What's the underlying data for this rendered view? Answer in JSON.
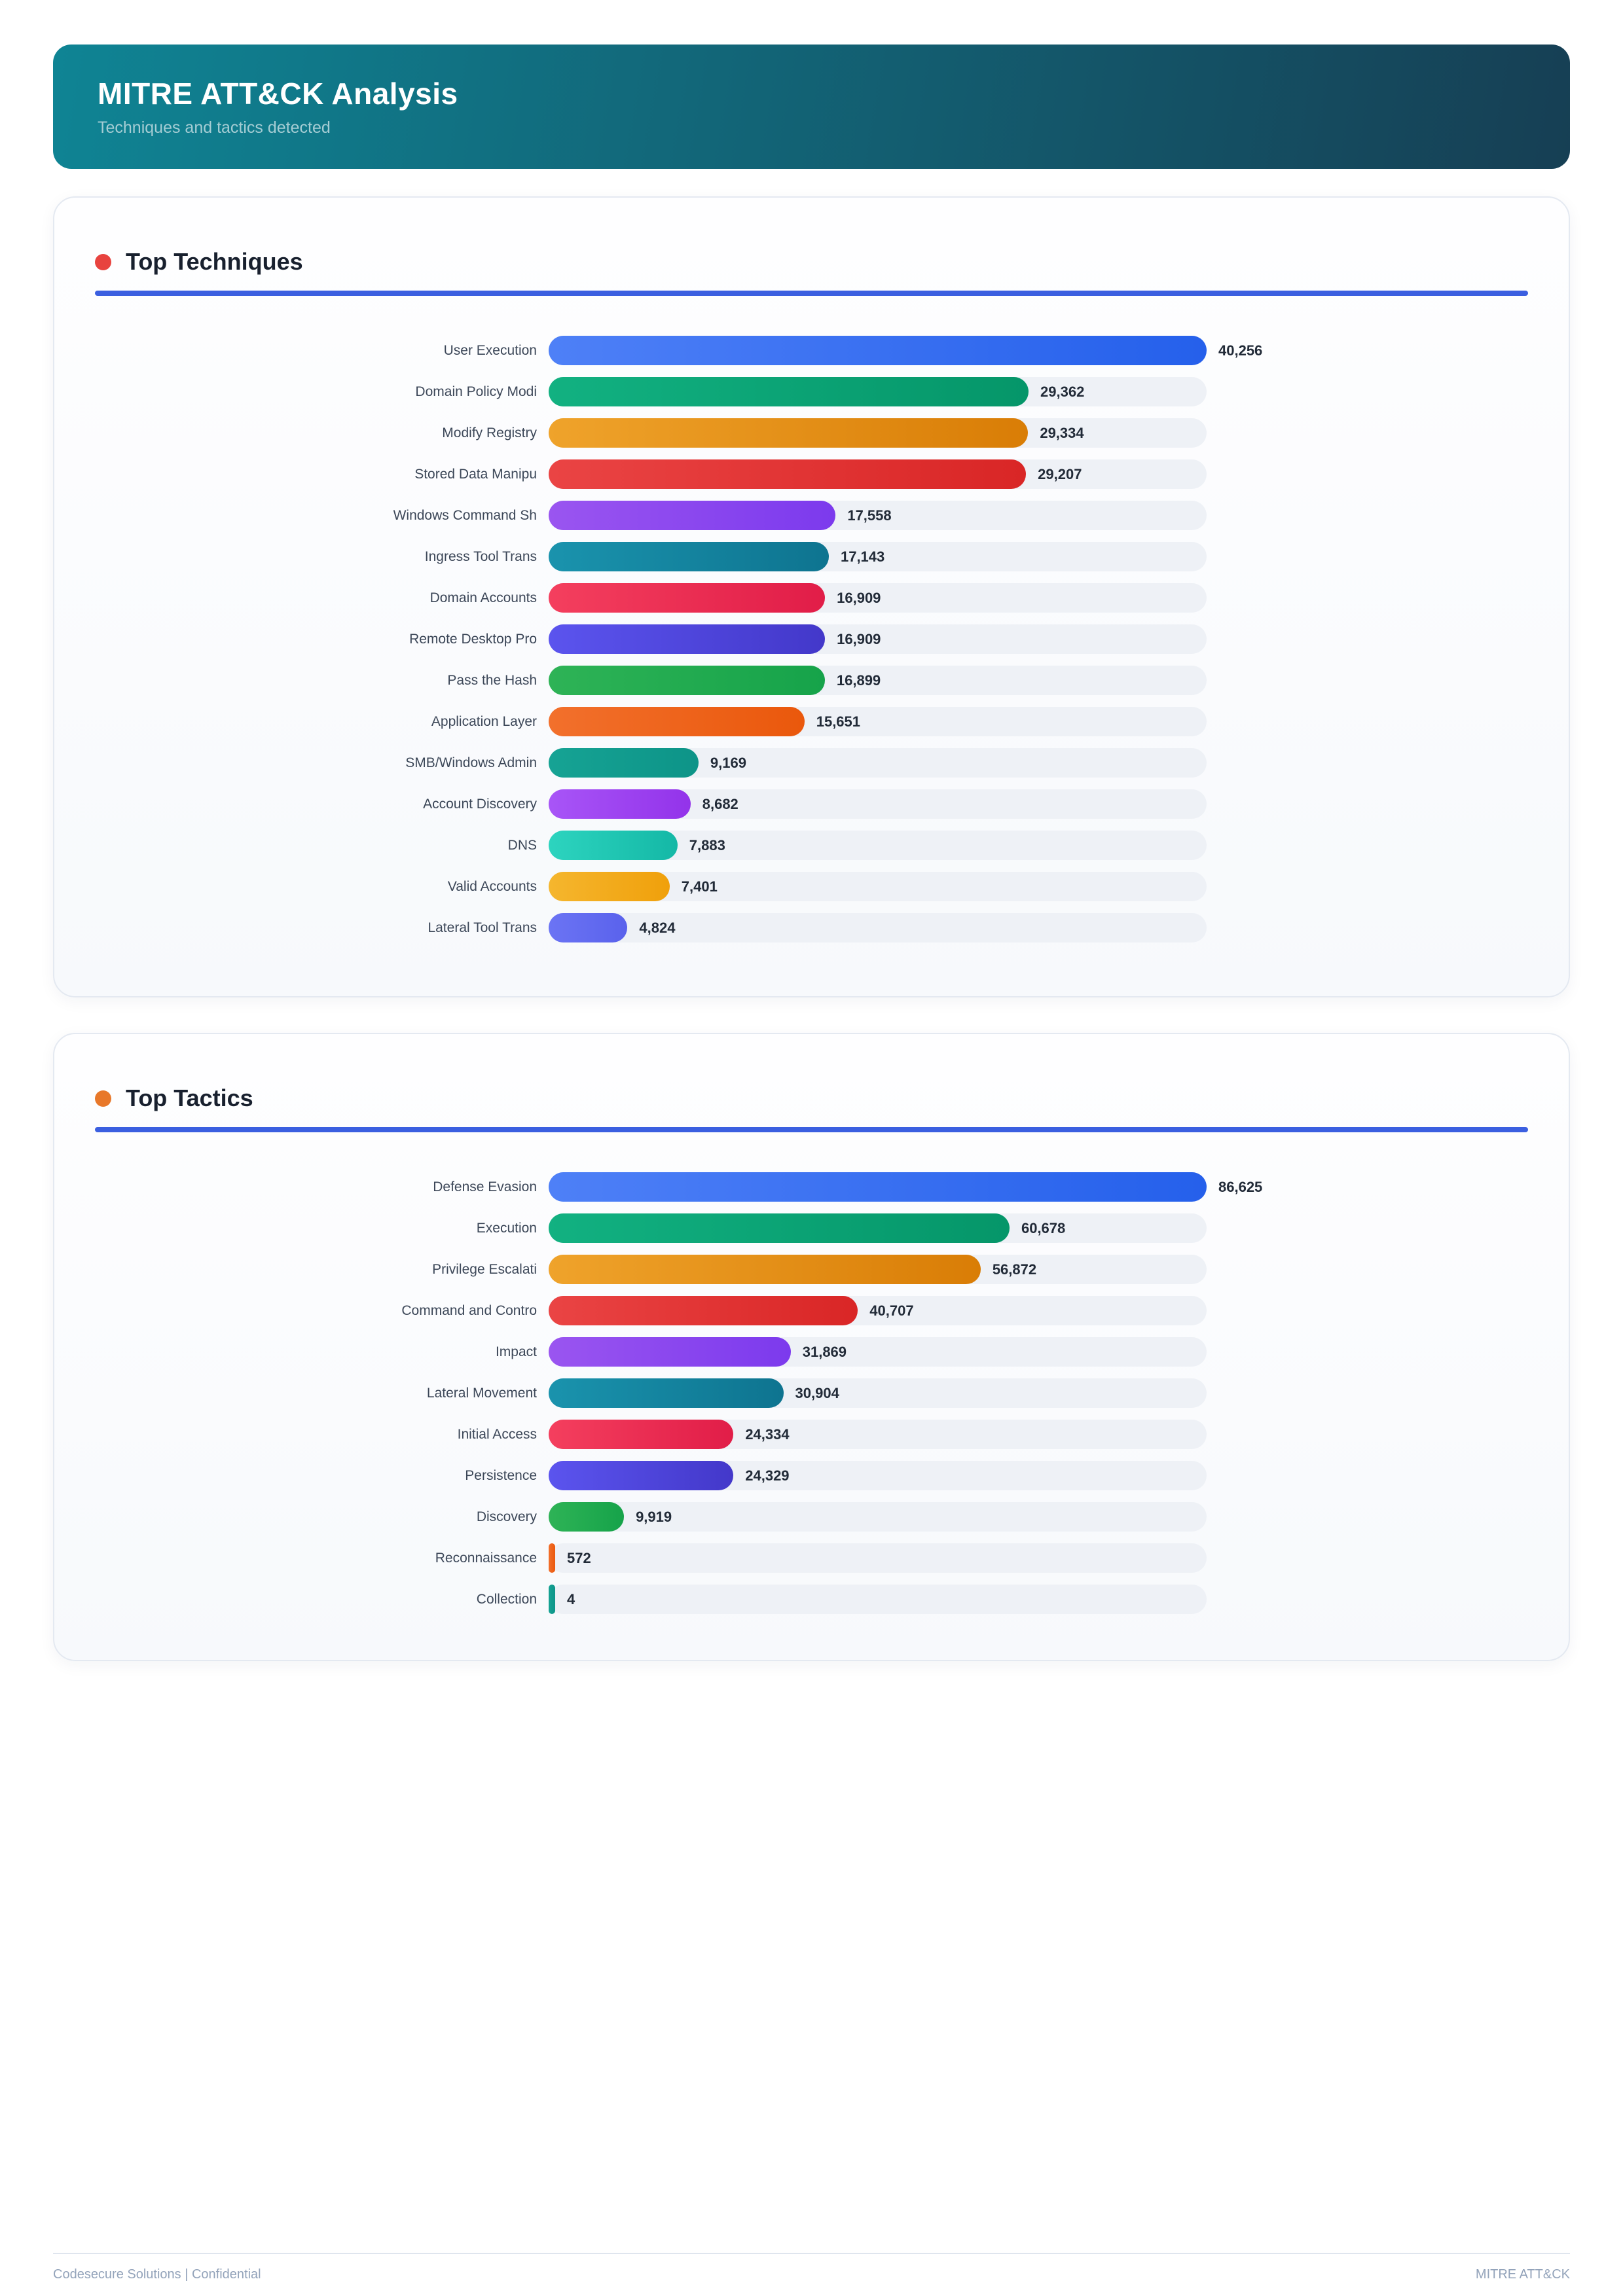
{
  "page": {
    "header": {
      "title": "MITRE ATT&CK Analysis",
      "subtitle": "Techniques and tactics detected"
    },
    "footer": {
      "left": "Codesecure Solutions | Confidential",
      "right": "MITRE ATT&CK"
    }
  },
  "theme": {
    "header_gradient_from": "#0f8494",
    "header_gradient_to": "#163f54",
    "underline_color": "#3b5fe0",
    "track_color": "#eef1f6",
    "label_color": "#3c4758",
    "value_color": "#222b38",
    "footer_color": "#93a3ba",
    "card_border": "#e4e9f1"
  },
  "sections": [
    {
      "title": "Top Techniques",
      "dot_color": "#e8433f"
    },
    {
      "title": "Top Tactics",
      "dot_color": "#e8782a"
    }
  ],
  "chart_data": [
    {
      "type": "bar",
      "orientation": "horizontal",
      "title": "Top Techniques",
      "categories": [
        "User Execution",
        "Domain Policy Modi",
        "Modify Registry",
        "Stored Data Manipu",
        "Windows Command Sh",
        "Ingress Tool Trans",
        "Domain Accounts",
        "Remote Desktop Pro",
        "Pass the Hash",
        "Application Layer",
        "SMB/Windows Admin",
        "Account Discovery",
        "DNS",
        "Valid Accounts",
        "Lateral Tool Trans"
      ],
      "values": [
        40256,
        29362,
        29334,
        29207,
        17558,
        17143,
        16909,
        16909,
        16899,
        15651,
        9169,
        8682,
        7883,
        7401,
        4824
      ],
      "value_labels": [
        "40,256",
        "29,362",
        "29,334",
        "29,207",
        "17,558",
        "17,143",
        "16,909",
        "16,909",
        "16,899",
        "15,651",
        "9,169",
        "8,682",
        "7,883",
        "7,401",
        "4,824"
      ],
      "xlim": [
        0,
        40256
      ],
      "grid": false,
      "legend": false,
      "bar_colors": [
        [
          "#4e80f7",
          "#2560eb"
        ],
        [
          "#12b181",
          "#059669"
        ],
        [
          "#efa32b",
          "#d97d06"
        ],
        [
          "#ea4444",
          "#d92626"
        ],
        [
          "#9a55f0",
          "#7c3aed"
        ],
        [
          "#1a93ad",
          "#0e7490"
        ],
        [
          "#f43f5e",
          "#e11d48"
        ],
        [
          "#5b54ee",
          "#4338ca"
        ],
        [
          "#2eb356",
          "#16a34a"
        ],
        [
          "#f2702c",
          "#ea580c"
        ],
        [
          "#16a394",
          "#0d9488"
        ],
        [
          "#a855f7",
          "#9333ea"
        ],
        [
          "#2dd4bf",
          "#14b8a6"
        ],
        [
          "#f5b62e",
          "#f0a00b"
        ],
        [
          "#6b74f4",
          "#5a62ec"
        ]
      ]
    },
    {
      "type": "bar",
      "orientation": "horizontal",
      "title": "Top Tactics",
      "categories": [
        "Defense Evasion",
        "Execution",
        "Privilege Escalati",
        "Command and Contro",
        "Impact",
        "Lateral Movement",
        "Initial Access",
        "Persistence",
        "Discovery",
        "Reconnaissance",
        "Collection"
      ],
      "values": [
        86625,
        60678,
        56872,
        40707,
        31869,
        30904,
        24334,
        24329,
        9919,
        572,
        4
      ],
      "value_labels": [
        "86,625",
        "60,678",
        "56,872",
        "40,707",
        "31,869",
        "30,904",
        "24,334",
        "24,329",
        "9,919",
        "572",
        "4"
      ],
      "xlim": [
        0,
        86625
      ],
      "grid": false,
      "legend": false,
      "bar_colors": [
        [
          "#4e80f7",
          "#2560eb"
        ],
        [
          "#12b181",
          "#059669"
        ],
        [
          "#efa32b",
          "#d97d06"
        ],
        [
          "#ea4444",
          "#d92626"
        ],
        [
          "#9a55f0",
          "#7c3aed"
        ],
        [
          "#1a93ad",
          "#0e7490"
        ],
        [
          "#f43f5e",
          "#e11d48"
        ],
        [
          "#5b54ee",
          "#4338ca"
        ],
        [
          "#2eb356",
          "#16a34a"
        ],
        [
          "#f2702c",
          "#ea580c"
        ],
        [
          "#16a394",
          "#0d9488"
        ]
      ]
    }
  ]
}
